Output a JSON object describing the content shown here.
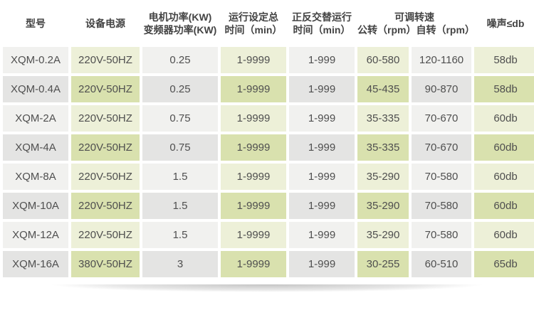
{
  "table": {
    "headers": {
      "model": "型号",
      "power_supply": "设备电源",
      "motor_power_line1": "电机功率(KW)",
      "motor_power_line2": "变频器功率(KW)",
      "run_time_line1": "运行设定总",
      "run_time_line2": "时间（min）",
      "alt_time_line1": "正反交替运行",
      "alt_time_line2": "时间（min）",
      "speed_group": "可调转速",
      "speed_revolution": "公转（rpm）",
      "speed_rotation": "自转（rpm）",
      "noise": "噪声≤db"
    },
    "rows": [
      {
        "model": "XQM-0.2A",
        "power_supply": "220V-50HZ",
        "motor_power": "0.25",
        "run_time": "1-9999",
        "alt_time": "1-999",
        "revolution": "60-580",
        "rotation": "120-1160",
        "noise": "58db"
      },
      {
        "model": "XQM-0.4A",
        "power_supply": "220V-50HZ",
        "motor_power": "0.25",
        "run_time": "1-9999",
        "alt_time": "1-999",
        "revolution": "45-435",
        "rotation": "90-870",
        "noise": "58db"
      },
      {
        "model": "XQM-2A",
        "power_supply": "220V-50HZ",
        "motor_power": "0.75",
        "run_time": "1-9999",
        "alt_time": "1-999",
        "revolution": "35-335",
        "rotation": "70-670",
        "noise": "60db"
      },
      {
        "model": "XQM-4A",
        "power_supply": "220V-50HZ",
        "motor_power": "0.75",
        "run_time": "1-9999",
        "alt_time": "1-999",
        "revolution": "35-335",
        "rotation": "70-670",
        "noise": "60db"
      },
      {
        "model": "XQM-8A",
        "power_supply": "220V-50HZ",
        "motor_power": "1.5",
        "run_time": "1-9999",
        "alt_time": "1-999",
        "revolution": "35-290",
        "rotation": "70-580",
        "noise": "60db"
      },
      {
        "model": "XQM-10A",
        "power_supply": "220V-50HZ",
        "motor_power": "1.5",
        "run_time": "1-9999",
        "alt_time": "1-999",
        "revolution": "35-290",
        "rotation": "70-580",
        "noise": "60db"
      },
      {
        "model": "XQM-12A",
        "power_supply": "220V-50HZ",
        "motor_power": "1.5",
        "run_time": "1-9999",
        "alt_time": "1-999",
        "revolution": "35-290",
        "rotation": "70-580",
        "noise": "60db"
      },
      {
        "model": "XQM-16A",
        "power_supply": "380V-50HZ",
        "motor_power": "3",
        "run_time": "1-9999",
        "alt_time": "1-999",
        "revolution": "30-255",
        "rotation": "60-510",
        "noise": "65db"
      }
    ]
  },
  "colors": {
    "green_light": "#edf0d8",
    "green_dark": "#d9e1ae",
    "gray_light": "#f1f1ef",
    "gray_dark": "#e4e4e3",
    "header_text": "#434343",
    "cell_text": "#4f4f4f"
  }
}
